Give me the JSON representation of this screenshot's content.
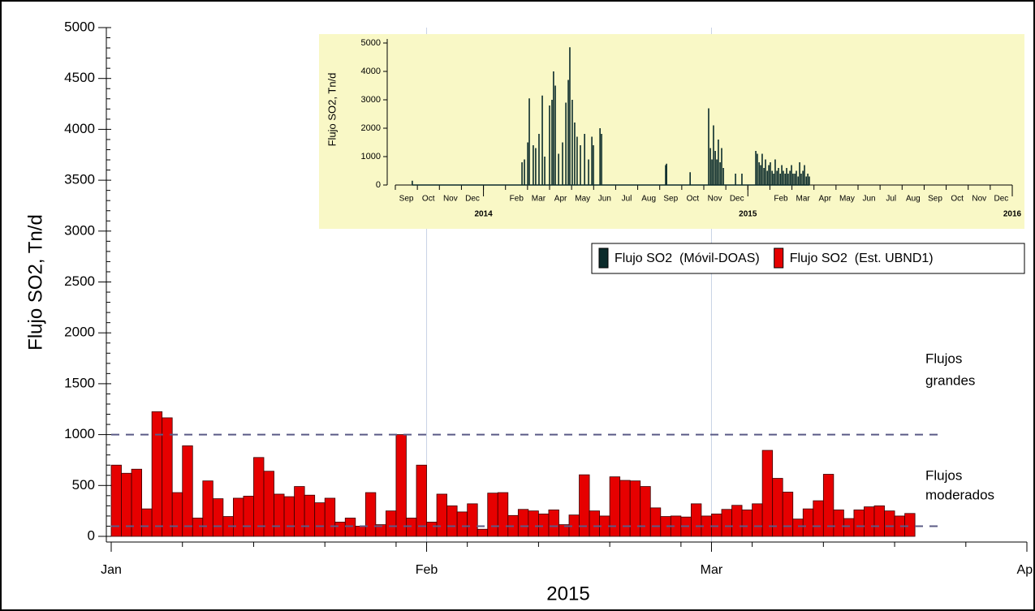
{
  "chart_data": [
    {
      "type": "bar",
      "y_label": "Flujo SO2, Tn/d",
      "x_label": "2015",
      "xlim": [
        0,
        90
      ],
      "xticks": [
        {
          "value": 0,
          "label": "Jan"
        },
        {
          "value": 31,
          "label": "Feb"
        },
        {
          "value": 59,
          "label": "Mar"
        },
        {
          "value": 90,
          "label": "Apr"
        }
      ],
      "ylim": [
        0,
        5000
      ],
      "yticks": [
        0,
        500,
        1000,
        1500,
        2000,
        2500,
        3000,
        3500,
        4000,
        4500,
        5000
      ],
      "xgrid": true,
      "reference_lines": [
        {
          "value": 1000,
          "color": "#5b5b86"
        },
        {
          "value": 100,
          "color": "#5b5b86"
        }
      ],
      "annotations": [
        {
          "lines": [
            "Flujos",
            "grandes"
          ]
        },
        {
          "lines": [
            "Flujos",
            "moderados"
          ]
        }
      ],
      "series": [
        {
          "name": "Flujo SO2  (Est. UBND1)",
          "color": "#e60000",
          "x": [
            0,
            1,
            2,
            3,
            4,
            5,
            6,
            7,
            8,
            9,
            10,
            11,
            12,
            13,
            14,
            15,
            16,
            17,
            18,
            19,
            20,
            21,
            22,
            23,
            24,
            25,
            26,
            27,
            28,
            29,
            30,
            31,
            32,
            33,
            34,
            35,
            36,
            37,
            38,
            39,
            40,
            41,
            42,
            43,
            44,
            45,
            46,
            47,
            48,
            49,
            50,
            51,
            52,
            53,
            54,
            55,
            56,
            57,
            58,
            59,
            60,
            61,
            62,
            63,
            64,
            65,
            66,
            67,
            68,
            69,
            70,
            71,
            72,
            73,
            74,
            75,
            76,
            77,
            78
          ],
          "values": [
            700,
            620,
            660,
            270,
            1225,
            1165,
            430,
            890,
            180,
            545,
            370,
            195,
            375,
            395,
            775,
            640,
            415,
            390,
            490,
            405,
            330,
            375,
            140,
            180,
            100,
            430,
            115,
            250,
            1000,
            180,
            700,
            140,
            415,
            300,
            240,
            320,
            70,
            425,
            430,
            205,
            265,
            250,
            220,
            260,
            115,
            210,
            605,
            250,
            200,
            585,
            550,
            545,
            490,
            280,
            195,
            200,
            190,
            320,
            200,
            220,
            265,
            305,
            260,
            320,
            845,
            570,
            435,
            170,
            270,
            350,
            610,
            260,
            175,
            260,
            290,
            300,
            250,
            200,
            225
          ]
        }
      ]
    },
    {
      "type": "spike",
      "y_label": "Flujo SO2, Tn/d",
      "xlim": [
        0,
        28
      ],
      "categories": [
        "Sep",
        "Oct",
        "Nov",
        "Dec",
        null,
        "Feb",
        "Mar",
        "Apr",
        "May",
        "Jun",
        "Jul",
        "Aug",
        "Sep",
        "Oct",
        "Nov",
        "Dec",
        null,
        "Feb",
        "Mar",
        "Apr",
        "May",
        "Jun",
        "Jul",
        "Aug",
        "Sep",
        "Oct",
        "Nov",
        "Dec"
      ],
      "xticks": [
        {
          "value": 4,
          "label": "2014"
        },
        {
          "value": 16,
          "label": "2015"
        },
        {
          "value": 28,
          "label": "2016"
        }
      ],
      "ylim": [
        0,
        5000
      ],
      "yticks": [
        0,
        1000,
        2000,
        3000,
        4000,
        5000
      ],
      "background": "#f9f8c6",
      "series": [
        {
          "name": "Flujo SO2  (Móvil-DOAS)",
          "color": "#0b2b2b",
          "x": [
            0.77,
            5.75,
            5.86,
            6.01,
            6.08,
            6.26,
            6.37,
            6.52,
            6.67,
            6.78,
            7.0,
            7.11,
            7.18,
            7.26,
            7.41,
            7.59,
            7.74,
            7.85,
            7.92,
            8.03,
            8.14,
            8.25,
            8.4,
            8.59,
            8.77,
            8.92,
            8.99,
            9.29,
            9.36,
            12.27,
            12.31,
            13.38,
            14.22,
            14.3,
            14.37,
            14.44,
            14.52,
            14.59,
            14.66,
            14.74,
            14.81,
            14.89,
            15.44,
            15.73,
            16.36,
            16.43,
            16.51,
            16.58,
            16.65,
            16.73,
            16.8,
            16.88,
            16.95,
            17.02,
            17.1,
            17.17,
            17.24,
            17.32,
            17.39,
            17.47,
            17.54,
            17.61,
            17.69,
            17.76,
            17.83,
            17.91,
            17.98,
            18.05,
            18.13,
            18.2,
            18.28,
            18.35,
            18.42,
            18.5,
            18.57,
            18.65,
            18.72,
            18.79
          ],
          "values": [
            150,
            800,
            900,
            1500,
            3050,
            1400,
            1300,
            1800,
            3150,
            1000,
            2800,
            3000,
            4000,
            3500,
            1100,
            1500,
            2900,
            3700,
            4850,
            3000,
            2200,
            1700,
            1400,
            1800,
            900,
            1700,
            1400,
            2000,
            1800,
            700,
            750,
            450,
            2700,
            1300,
            900,
            2100,
            1200,
            900,
            1600,
            800,
            1300,
            600,
            400,
            400,
            1200,
            1100,
            800,
            700,
            1100,
            600,
            900,
            500,
            700,
            800,
            500,
            400,
            900,
            500,
            600,
            400,
            700,
            500,
            400,
            600,
            400,
            500,
            700,
            400,
            400,
            500,
            300,
            800,
            400,
            500,
            700,
            300,
            400,
            300
          ]
        }
      ]
    }
  ]
}
